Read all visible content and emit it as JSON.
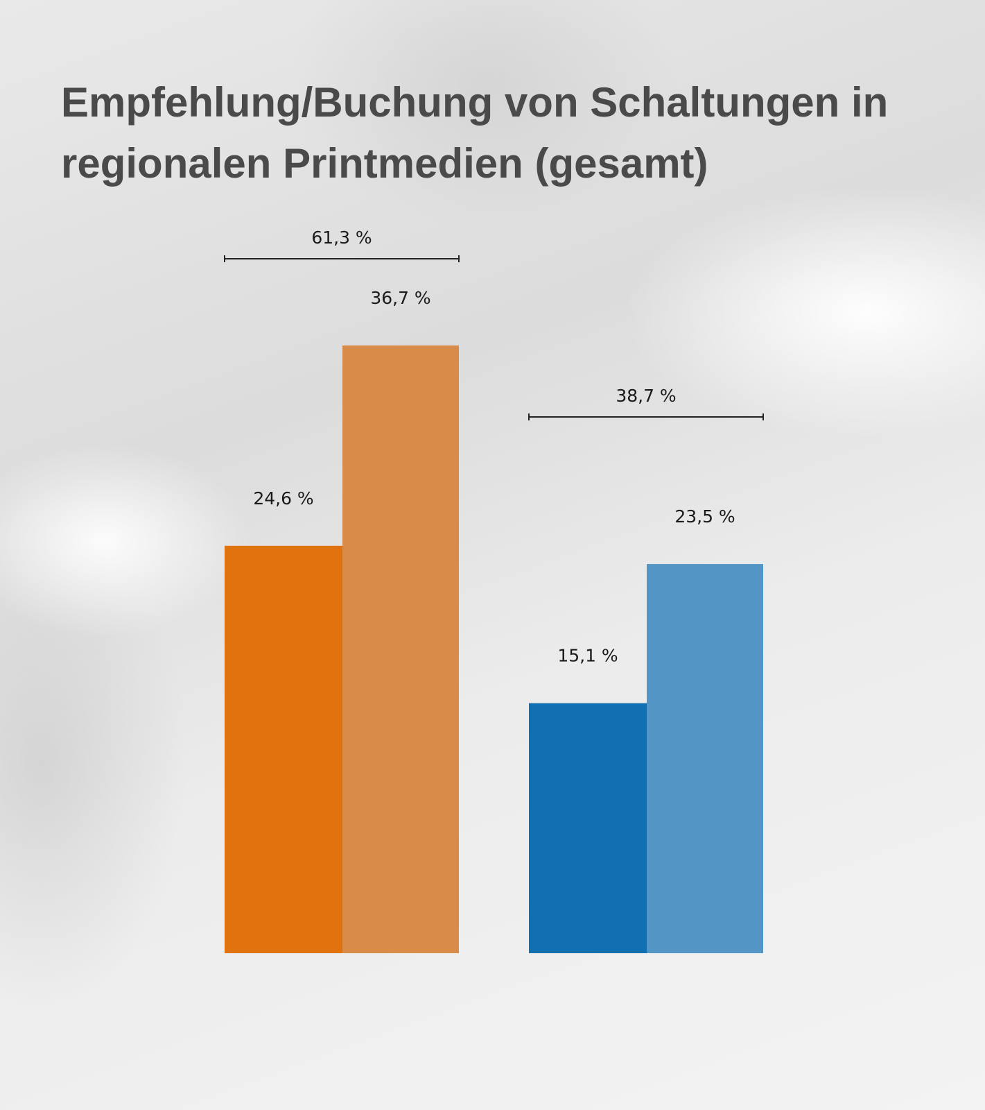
{
  "title": "Empfehlung/Buchung von Schaltungen in regionalen Printmedien (gesamt)",
  "chart_data": {
    "type": "bar",
    "title": "Empfehlung/Buchung von Schaltungen in regionalen Printmedien (gesamt)",
    "groups": [
      {
        "total_label": "61,3 %",
        "total": 61.3,
        "bars": [
          {
            "value": 24.6,
            "label": "24,6 %",
            "color": "#e2720d"
          },
          {
            "value": 36.7,
            "label": "36,7 %",
            "color": "#d98c4a"
          }
        ]
      },
      {
        "total_label": "38,7 %",
        "total": 38.7,
        "bars": [
          {
            "value": 15.1,
            "label": "15,1 %",
            "color": "#1170b2"
          },
          {
            "value": 23.5,
            "label": "23,5 %",
            "color": "#5396c6"
          }
        ]
      }
    ],
    "ylim": [
      0,
      60
    ],
    "grid": false,
    "xlabel": "",
    "ylabel": ""
  }
}
